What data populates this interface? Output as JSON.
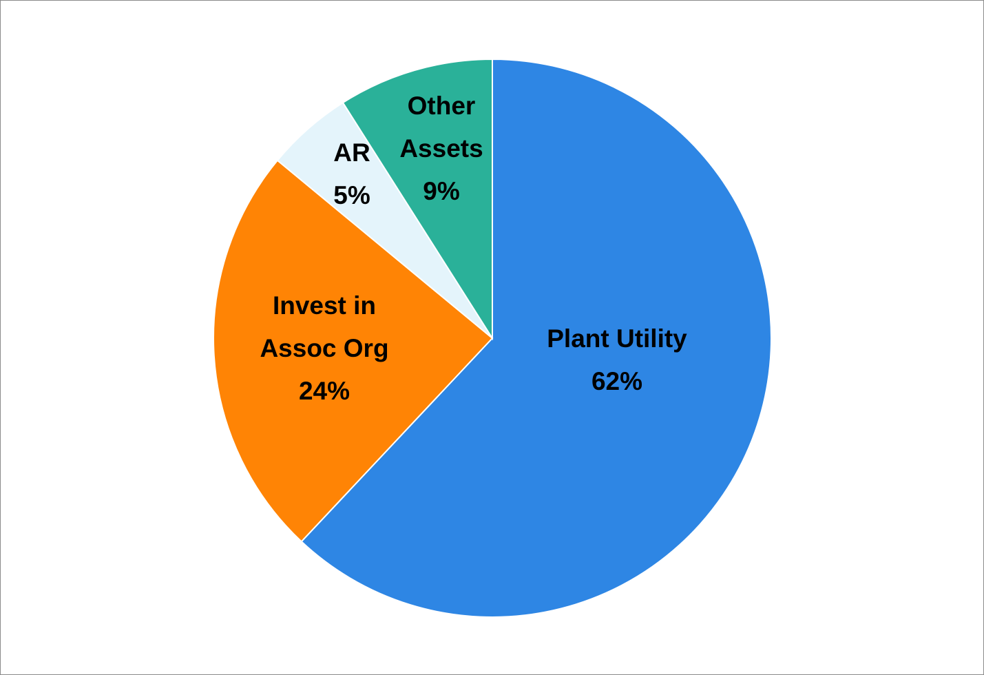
{
  "chart_data": {
    "type": "pie",
    "categories": [
      "Plant Utility",
      "Invest in Assoc Org",
      "AR",
      "Other Assets"
    ],
    "values": [
      62,
      24,
      5,
      9
    ],
    "value_labels": [
      "62%",
      "24%",
      "5%",
      "9%"
    ],
    "colors": [
      "#2e86e4",
      "#ff8405",
      "#e4f4fb",
      "#2ab199"
    ]
  }
}
